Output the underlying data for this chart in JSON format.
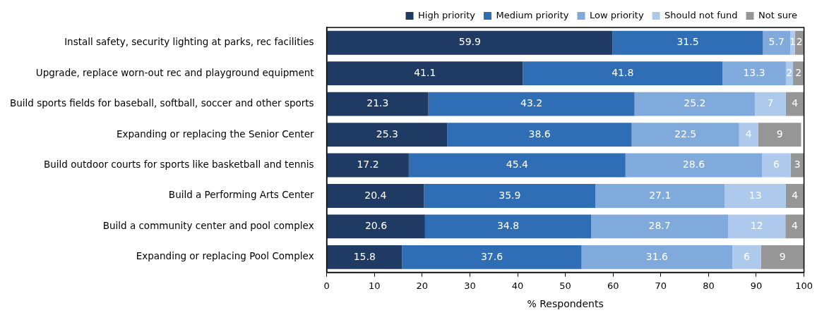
{
  "chart_data": {
    "type": "bar",
    "orientation": "horizontal",
    "stacked": true,
    "xlabel": "% Respondents",
    "categories": [
      "Install safety, security lighting at parks, rec facilities",
      "Upgrade, replace worn-out rec and playground equipment",
      "Build sports fields for baseball, softball, soccer and other sports",
      "Expanding or replacing the Senior Center",
      "Build outdoor courts for sports like basketball and tennis",
      "Build a Performing Arts Center",
      "Build a community center and pool complex",
      "Expanding or replacing Pool Complex"
    ],
    "series": [
      {
        "name": "High priority",
        "color": "#1f3a63",
        "values": [
          59.9,
          41.1,
          21.3,
          25.3,
          17.2,
          20.4,
          20.6,
          15.8
        ],
        "value_labels": [
          "59.9",
          "41.1",
          "21.3",
          "25.3",
          "17.2",
          "20.4",
          "20.6",
          "15.8"
        ]
      },
      {
        "name": "Medium priority",
        "color": "#2f6db5",
        "values": [
          31.5,
          41.8,
          43.2,
          38.6,
          45.4,
          35.9,
          34.8,
          37.6
        ],
        "value_labels": [
          "31.5",
          "41.8",
          "43.2",
          "38.6",
          "45.4",
          "35.9",
          "34.8",
          "37.6"
        ]
      },
      {
        "name": "Low priority",
        "color": "#80a9dc",
        "values": [
          5.7,
          13.3,
          25.2,
          22.5,
          28.6,
          27.1,
          28.7,
          31.6
        ],
        "value_labels": [
          "5.7",
          "13.3",
          "25.2",
          "22.5",
          "28.6",
          "27.1",
          "28.7",
          "31.6"
        ]
      },
      {
        "name": "Should not fund",
        "color": "#adc9eb",
        "values": [
          1,
          1.5,
          6.5,
          4,
          6,
          12.8,
          12,
          6
        ],
        "value_labels": [
          "1",
          "2",
          "7",
          "4",
          "6",
          "13",
          "12",
          "6"
        ]
      },
      {
        "name": "Not sure",
        "color": "#969696",
        "values": [
          1.9,
          2.3,
          3.8,
          9,
          2.8,
          3.8,
          3.9,
          9
        ],
        "value_labels": [
          "2",
          "2",
          "4",
          "9",
          "3",
          "4",
          "4",
          "9"
        ]
      }
    ],
    "xlim": [
      0,
      100
    ],
    "xticks": [
      0,
      10,
      20,
      30,
      40,
      50,
      60,
      70,
      80,
      90,
      100
    ],
    "grid": false,
    "legend": "top right"
  }
}
